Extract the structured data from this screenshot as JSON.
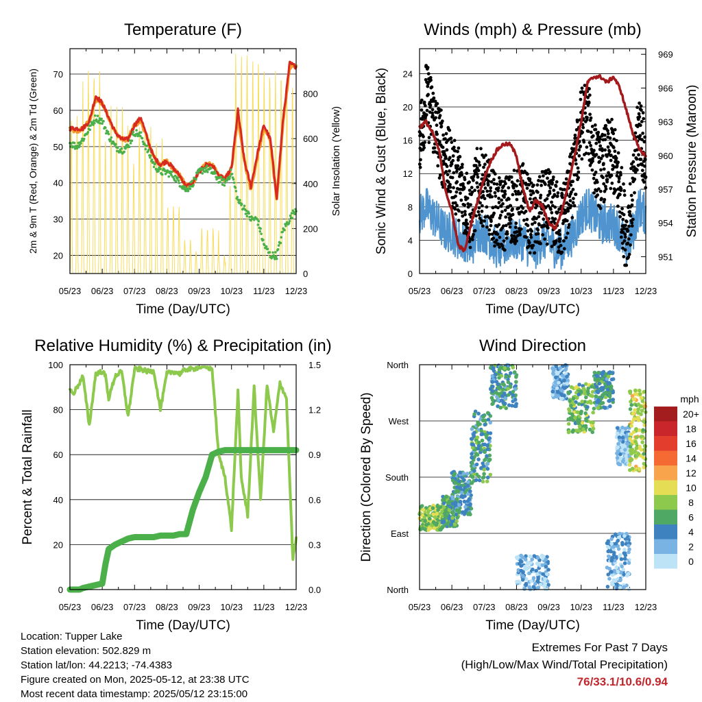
{
  "x_tick_labels": [
    "05/23",
    "06/23",
    "07/23",
    "08/23",
    "09/23",
    "10/23",
    "11/23",
    "12/23"
  ],
  "xlabel": "Time (Day/UTC)",
  "info": {
    "location": "Location: Tupper Lake",
    "elevation": "Station elevation: 502.829 m",
    "latlon": "Station lat/lon: 44.2213; -74.4383",
    "created": "Figure created on Mon, 2025-05-12, at 23:38 UTC",
    "recent": "Most recent data timestamp: 2025/05/12 23:15:00"
  },
  "extremes": {
    "title": "Extremes For Past 7 Days",
    "subtitle": "(High/Low/Max Wind/Total Precipitation)",
    "values": "76/33.1/10.6/0.94"
  },
  "colors": {
    "temp": "#d62a20",
    "temp9m": "#f39a2b",
    "dew": "#4cb04a",
    "solar": "#f7dc5a",
    "sonic": "#4f94cf",
    "gust": "#000000",
    "pressure": "#a3191c",
    "rh": "#8dc94d",
    "precip": "#4cb04a"
  },
  "chart_data": [
    {
      "type": "line",
      "title": "Temperature (F)",
      "xlabel": "Time (Day/UTC)",
      "ylabel": "2m & 9m T (Red, Orange) & 2m Td (Green)",
      "ylabel_right": "Solar Insolation (Yellow)",
      "x_tick_labels": [
        "05/23",
        "06/23",
        "07/23",
        "08/23",
        "09/23",
        "10/23",
        "11/23",
        "12/23"
      ],
      "ylim": [
        15,
        77
      ],
      "yticks": [
        20,
        30,
        40,
        50,
        60,
        70
      ],
      "ylim_right": [
        0,
        1000
      ],
      "yticks_right": [
        0,
        200,
        400,
        600,
        800
      ],
      "x": [
        0,
        0.2,
        0.4,
        0.6,
        0.8,
        1.0,
        1.2,
        1.4,
        1.6,
        1.8,
        2.0,
        2.2,
        2.4,
        2.6,
        2.8,
        3.0,
        3.2,
        3.4,
        3.6,
        3.8,
        4.0,
        4.2,
        4.4,
        4.6,
        4.8,
        5.0,
        5.2,
        5.4,
        5.6,
        5.8,
        6.0,
        6.2,
        6.4,
        6.6,
        6.8,
        7.0
      ],
      "series": [
        {
          "name": "2m T",
          "values": [
            55,
            55,
            55,
            57,
            64,
            62,
            58,
            54,
            52,
            52,
            56,
            58,
            52,
            47,
            45,
            46,
            44,
            42,
            39,
            40,
            43,
            45,
            45,
            42,
            41,
            44,
            60,
            46,
            39,
            48,
            56,
            52,
            36,
            58,
            73,
            72
          ]
        },
        {
          "name": "9m T",
          "values": [
            55,
            54,
            55,
            57,
            63,
            62,
            58,
            54,
            52,
            52,
            56,
            57,
            52,
            47,
            45,
            46,
            44,
            42,
            39,
            40,
            43,
            45,
            45,
            42,
            41,
            44,
            58,
            46,
            38,
            47,
            55,
            52,
            35,
            57,
            72,
            72
          ]
        },
        {
          "name": "2m Td",
          "values": [
            51,
            50,
            52,
            55,
            58,
            57,
            53,
            50,
            49,
            50,
            54,
            53,
            49,
            45,
            43,
            43,
            42,
            40,
            38,
            40,
            43,
            44,
            43,
            41,
            40,
            43,
            35,
            33,
            30,
            30,
            23,
            20,
            20,
            27,
            30,
            33
          ]
        },
        {
          "name": "Solar Insolation",
          "axis": "right",
          "values": [
            0,
            700,
            0,
            900,
            0,
            600,
            0,
            750,
            0,
            500,
            0,
            650,
            0,
            600,
            0,
            300,
            0,
            150,
            0,
            100,
            0,
            200,
            0,
            80,
            0,
            400,
            980,
            0,
            950,
            0,
            0,
            900,
            0,
            300,
            850,
            0
          ]
        }
      ]
    },
    {
      "type": "scatter",
      "title": "Winds (mph) & Pressure (mb)",
      "xlabel": "Time (Day/UTC)",
      "ylabel": "Sonic Wind & Gust (Blue, Black)",
      "ylabel_right": "Station Pressure (Maroon)",
      "x_tick_labels": [
        "05/23",
        "06/23",
        "07/23",
        "08/23",
        "09/23",
        "10/23",
        "11/23",
        "12/23"
      ],
      "ylim": [
        0,
        27
      ],
      "yticks": [
        0,
        4,
        8,
        12,
        16,
        20,
        24
      ],
      "ylim_right": [
        949.5,
        969.5
      ],
      "yticks_right": [
        951,
        954,
        957,
        960,
        963,
        966,
        969
      ],
      "x": [
        0,
        0.2,
        0.4,
        0.6,
        0.8,
        1.0,
        1.2,
        1.4,
        1.6,
        1.8,
        2.0,
        2.2,
        2.4,
        2.6,
        2.8,
        3.0,
        3.2,
        3.4,
        3.6,
        3.8,
        4.0,
        4.2,
        4.4,
        4.6,
        4.8,
        5.0,
        5.2,
        5.4,
        5.6,
        5.8,
        6.0,
        6.2,
        6.4,
        6.6,
        6.8,
        7.0
      ],
      "series": [
        {
          "name": "Sonic Wind",
          "values": [
            7,
            8,
            7,
            6,
            5,
            5,
            4,
            4,
            3,
            5,
            5,
            4,
            3,
            3,
            4,
            4,
            4,
            3,
            3,
            4,
            4,
            3,
            3,
            4,
            5,
            7,
            8,
            7,
            6,
            6,
            6,
            5,
            3,
            5,
            8,
            7
          ]
        },
        {
          "name": "Gust",
          "values": [
            16,
            21,
            19,
            16,
            14,
            12,
            11,
            9,
            7,
            11,
            10,
            9,
            7,
            7,
            8,
            8,
            9,
            7,
            6,
            8,
            8,
            7,
            6,
            9,
            12,
            18,
            19,
            14,
            12,
            14,
            14,
            10,
            4,
            10,
            18,
            13
          ]
        },
        {
          "name": "Station Pressure",
          "axis": "right",
          "values": [
            962.5,
            963,
            962,
            960.5,
            957,
            955,
            952,
            951.5,
            954,
            956,
            958,
            959.5,
            960.5,
            961,
            961,
            960,
            957,
            955,
            956,
            955.5,
            954,
            953.5,
            955,
            957.5,
            960,
            963,
            966.5,
            967,
            967,
            966.5,
            967,
            966,
            964,
            962,
            960.5,
            960
          ]
        }
      ]
    },
    {
      "type": "line",
      "title": "Relative Humidity (%) & Precipitation (in)",
      "xlabel": "Time (Day/UTC)",
      "ylabel": "Percent & Total Rainfall",
      "x_tick_labels": [
        "05/23",
        "06/23",
        "07/23",
        "08/23",
        "09/23",
        "10/23",
        "11/23",
        "12/23"
      ],
      "ylim": [
        0,
        100
      ],
      "yticks": [
        0,
        20,
        40,
        60,
        80,
        100
      ],
      "ylim_right": [
        0.0,
        1.5
      ],
      "yticks_right": [
        "0.0",
        "0.3",
        "0.6",
        "0.9",
        "1.2",
        "1.5"
      ],
      "x": [
        0,
        0.1,
        0.3,
        0.4,
        0.6,
        0.8,
        1.0,
        1.1,
        1.2,
        1.4,
        1.6,
        1.8,
        2.0,
        2.2,
        2.4,
        2.6,
        2.8,
        3.0,
        3.2,
        3.4,
        3.6,
        3.8,
        4.0,
        4.2,
        4.4,
        4.6,
        4.8,
        5.0,
        5.2,
        5.3,
        5.5,
        5.7,
        5.9,
        6.1,
        6.3,
        6.5,
        6.7,
        6.9,
        7.0
      ],
      "series": [
        {
          "name": "Relative Humidity",
          "values": [
            89,
            87,
            92,
            95,
            73,
            96,
            97,
            95,
            85,
            95,
            97,
            77,
            98,
            98,
            97,
            97,
            80,
            96,
            97,
            96,
            98,
            98,
            99,
            99,
            98,
            60,
            50,
            27,
            88,
            50,
            33,
            90,
            40,
            91,
            70,
            92,
            85,
            13,
            23
          ]
        },
        {
          "name": "Precipitation",
          "axis": "right",
          "values": [
            0,
            0,
            0,
            0.01,
            0.02,
            0.03,
            0.04,
            0.17,
            0.27,
            0.3,
            0.32,
            0.34,
            0.35,
            0.35,
            0.35,
            0.35,
            0.36,
            0.36,
            0.36,
            0.37,
            0.37,
            0.53,
            0.65,
            0.75,
            0.9,
            0.92,
            0.93,
            0.93,
            0.93,
            0.93,
            0.93,
            0.93,
            0.93,
            0.93,
            0.93,
            0.93,
            0.93,
            0.93,
            0.93
          ]
        }
      ]
    },
    {
      "type": "scatter",
      "title": "Wind Direction",
      "xlabel": "Time (Day/UTC)",
      "ylabel": "Direction (Colored By Speed)",
      "x_tick_labels": [
        "05/23",
        "06/23",
        "07/23",
        "08/23",
        "09/23",
        "10/23",
        "11/23",
        "12/23"
      ],
      "yticks": [
        "North",
        "East",
        "South",
        "West",
        "North"
      ],
      "ylim": [
        0,
        360
      ],
      "legend_title": "mph",
      "legend_labels": [
        "20+",
        "18",
        "16",
        "14",
        "12",
        "10",
        "8",
        "6",
        "4",
        "2",
        "0"
      ],
      "legend_colors": [
        "#a31c1e",
        "#c8262a",
        "#e23d2d",
        "#f46a32",
        "#f8a44c",
        "#e5de55",
        "#8dc94d",
        "#4fa863",
        "#3f82c0",
        "#78b3e3",
        "#bde3f7"
      ],
      "legend_position": "right",
      "clusters": [
        {
          "x_range": [
            0.0,
            0.7
          ],
          "dir_range": [
            95,
            135
          ],
          "speed": 8
        },
        {
          "x_range": [
            0.7,
            1.2
          ],
          "dir_range": [
            100,
            150
          ],
          "speed": 6
        },
        {
          "x_range": [
            1.0,
            1.6
          ],
          "dir_range": [
            120,
            190
          ],
          "speed": 4
        },
        {
          "x_range": [
            1.6,
            2.2
          ],
          "dir_range": [
            170,
            290
          ],
          "speed": 5
        },
        {
          "x_range": [
            2.2,
            3.0
          ],
          "dir_range": [
            290,
            360
          ],
          "speed": 5
        },
        {
          "x_range": [
            3.0,
            4.0
          ],
          "dir_range": [
            0,
            55
          ],
          "speed": 2
        },
        {
          "x_range": [
            4.1,
            4.6
          ],
          "dir_range": [
            305,
            360
          ],
          "speed": 2
        },
        {
          "x_range": [
            4.6,
            5.4
          ],
          "dir_range": [
            250,
            330
          ],
          "speed": 7
        },
        {
          "x_range": [
            5.4,
            6.0
          ],
          "dir_range": [
            290,
            350
          ],
          "speed": 5
        },
        {
          "x_range": [
            5.8,
            6.5
          ],
          "dir_range": [
            0,
            90
          ],
          "speed": 2
        },
        {
          "x_range": [
            6.1,
            6.5
          ],
          "dir_range": [
            200,
            260
          ],
          "speed": 1
        },
        {
          "x_range": [
            6.5,
            7.0
          ],
          "dir_range": [
            190,
            320
          ],
          "speed": 9
        }
      ]
    }
  ]
}
